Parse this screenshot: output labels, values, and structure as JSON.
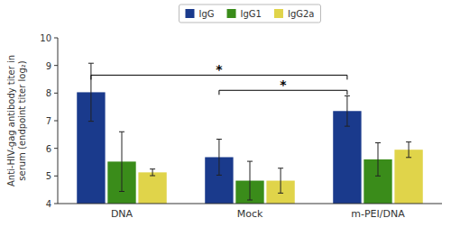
{
  "chart_data": {
    "type": "bar",
    "categories": [
      "DNA",
      "Mock",
      "m-PEI/DNA"
    ],
    "series": [
      {
        "name": "IgG",
        "color": "#1a3a8c",
        "values": [
          8.03,
          5.68,
          7.35
        ],
        "errors": [
          1.05,
          0.65,
          0.55
        ]
      },
      {
        "name": "IgG1",
        "color": "#3a8c1a",
        "values": [
          5.52,
          4.83,
          5.6
        ],
        "errors": [
          1.08,
          0.7,
          0.6
        ]
      },
      {
        "name": "IgG2a",
        "color": "#e0d44a",
        "values": [
          5.13,
          4.83,
          5.95
        ],
        "errors": [
          0.12,
          0.45,
          0.28
        ]
      }
    ],
    "ylabel": "Anti-HIV-gag antibody titer in\nserum (endpoint titer log₂)",
    "ylim": [
      4,
      10
    ],
    "yticks": [
      4,
      5,
      6,
      7,
      8,
      9,
      10
    ],
    "annotations": [
      {
        "text": "*",
        "y": 8.65,
        "series": "IgG",
        "from": "DNA",
        "to": "m-PEI/DNA"
      },
      {
        "text": "*",
        "y": 8.1,
        "series": "IgG",
        "from": "Mock",
        "to": "m-PEI/DNA"
      }
    ],
    "legend": "top",
    "grid": false
  }
}
